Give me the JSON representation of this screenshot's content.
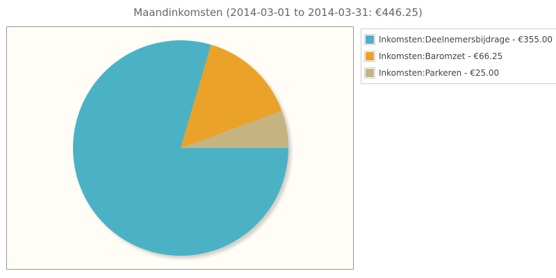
{
  "chart_data": {
    "type": "pie",
    "title": "Maandinkomsten (2014-03-01 to 2014-03-31: €446.25)",
    "legend_position": "right",
    "slices": [
      {
        "label": "Inkomsten:Deelnemersbijdrage - €355.00",
        "value": 355.0,
        "color": "#4bb2c5"
      },
      {
        "label": "Inkomsten:Baromzet - €66.25",
        "value": 66.25,
        "color": "#eaa228"
      },
      {
        "label": "Inkomsten:Parkeren - €25.00",
        "value": 25.0,
        "color": "#c5b47f"
      }
    ],
    "background_color": "#fffdf6"
  }
}
